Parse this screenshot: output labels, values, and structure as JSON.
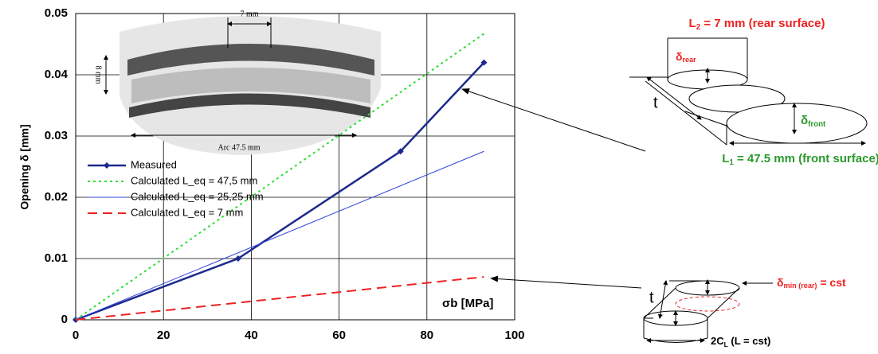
{
  "chart_data": {
    "type": "line",
    "x_label": "σb [MPa]",
    "y_label": "Opening δ [mm]",
    "xlim": [
      0,
      100
    ],
    "xticks": [
      0,
      20,
      40,
      60,
      80,
      100
    ],
    "ylim": [
      0,
      0.05
    ],
    "yticks": [
      0,
      0.01,
      0.02,
      0.03,
      0.04,
      0.05
    ],
    "grid": true,
    "legend": "lower left",
    "series": [
      {
        "name": "Measured",
        "color": "#1c2a8c",
        "style": "solid",
        "marker": "diamond",
        "x": [
          0,
          37,
          74,
          93
        ],
        "values": [
          0,
          0.01,
          0.0275,
          0.042
        ]
      },
      {
        "name": "Calculated L_eq = 47,5 mm",
        "color": "#33dd33",
        "style": "dotted",
        "x": [
          0,
          93
        ],
        "values": [
          0,
          0.0467
        ]
      },
      {
        "name": "Calculated L_eq = 25,25 mm",
        "color": "#3344dd",
        "style": "solid",
        "x": [
          0,
          93
        ],
        "values": [
          0,
          0.0275
        ]
      },
      {
        "name": "Calculated L_eq = 7 mm",
        "color": "#ee2222",
        "style": "dashed",
        "x": [
          0,
          93
        ],
        "values": [
          0,
          0.007
        ]
      }
    ]
  },
  "inset": {
    "width_label": "7 mm",
    "height_label": "8 mm",
    "arc_label": "Arc 47.5 mm"
  },
  "diagrams": {
    "rear_title": {
      "main": "L",
      "sub": "2",
      "rest": " = 7 mm (rear surface)"
    },
    "front_title": {
      "main": "L",
      "sub": "1",
      "rest": " = 47.5 mm (front surface)"
    },
    "delta_rear": {
      "main": "δ",
      "sub": "rear"
    },
    "delta_front": {
      "main": "δ",
      "sub": "front"
    },
    "t_top": "t",
    "t_bottom": "t",
    "delta_min": {
      "main": "δ",
      "sub": "min (rear)",
      "rest": " = cst"
    },
    "length_const": {
      "main": "2C",
      "sub": "L",
      "rest": " (L = cst)"
    }
  }
}
